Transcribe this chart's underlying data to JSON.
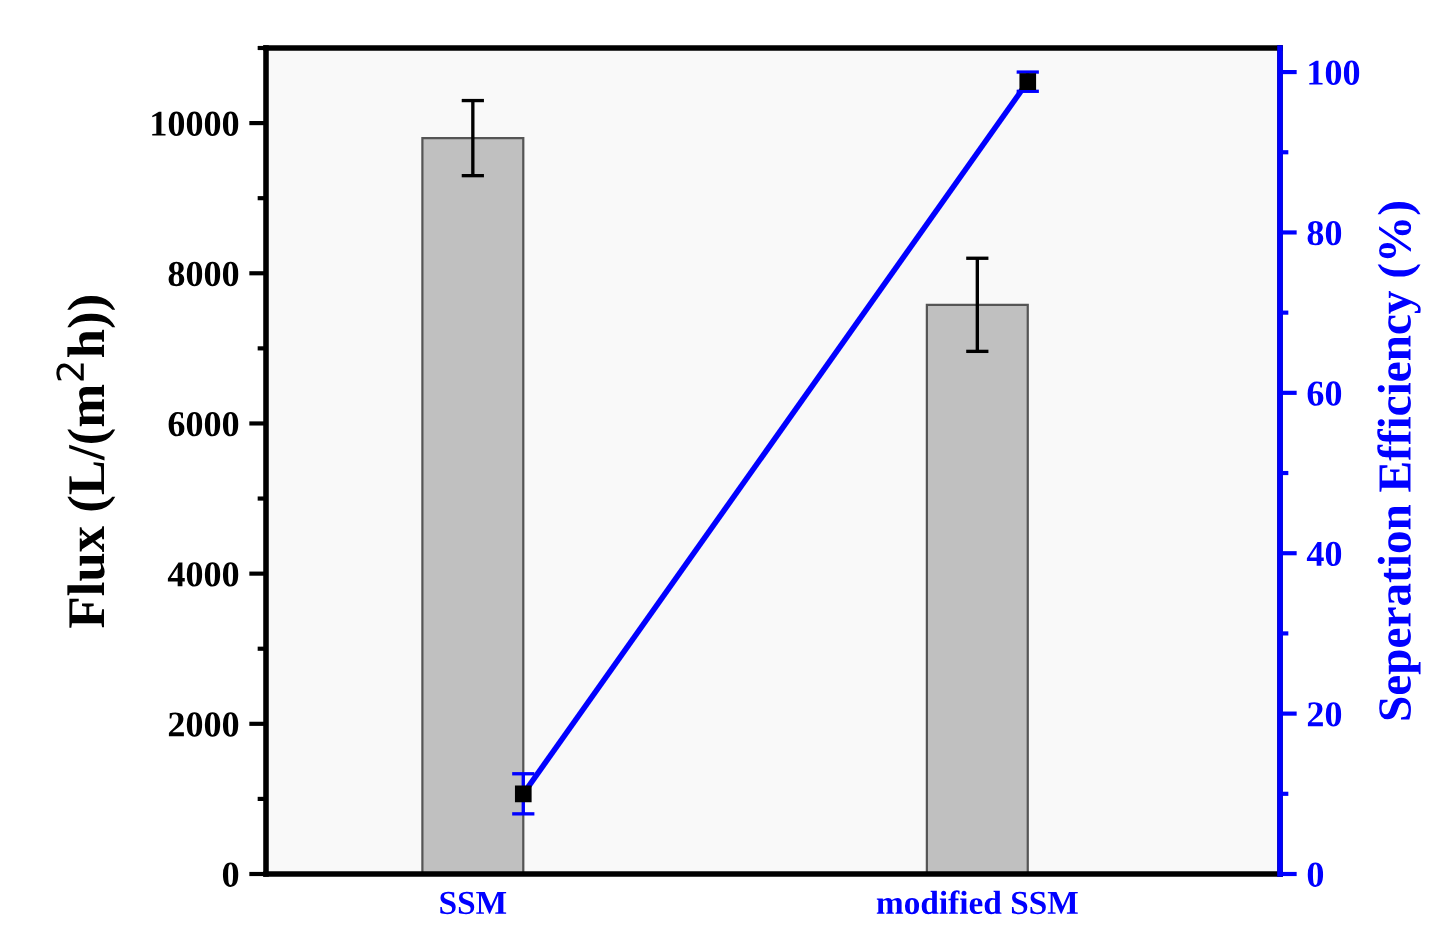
{
  "chart_data": {
    "type": "bar",
    "ylabel": "Flux (L/(m$^{2}$h))",
    "y2label": "Seperation Efficiency (%)",
    "categories": [
      "SSM",
      "modified SSM"
    ],
    "series": [
      {
        "color": "#c0c0c0",
        "values": [
          9800,
          7580
        ],
        "errors": [
          500,
          620
        ]
      },
      {
        "type": "line",
        "axis": "y2",
        "color": "#0000ff",
        "values": [
          10,
          98.8
        ],
        "errors": [
          2.5,
          1.2
        ],
        "marker": "square"
      }
    ],
    "ylim": [
      0,
      11000
    ],
    "yticks": [
      0,
      2000,
      4000,
      6000,
      8000,
      10000
    ],
    "y2lim": [
      0,
      103
    ],
    "y2ticks": [
      0,
      20,
      40,
      60,
      80,
      100
    ],
    "grid": false,
    "legend": false
  }
}
